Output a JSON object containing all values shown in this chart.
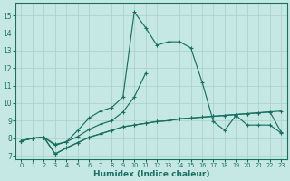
{
  "xlabel": "Humidex (Indice chaleur)",
  "background_color": "#c5e8e5",
  "grid_color": "#a8cfc8",
  "line_color": "#1a7060",
  "xlim": [
    -0.5,
    23.5
  ],
  "ylim": [
    6.8,
    15.7
  ],
  "xticks": [
    0,
    1,
    2,
    3,
    4,
    5,
    6,
    7,
    8,
    9,
    10,
    11,
    12,
    13,
    14,
    15,
    16,
    17,
    18,
    19,
    20,
    21,
    22,
    23
  ],
  "yticks": [
    7,
    8,
    9,
    10,
    11,
    12,
    13,
    14,
    15
  ],
  "x": [
    0,
    1,
    2,
    3,
    4,
    5,
    6,
    7,
    8,
    9,
    10,
    11,
    12,
    13,
    14,
    15,
    16,
    17,
    18,
    19,
    20,
    21,
    22,
    23
  ],
  "line1": [
    7.85,
    8.0,
    8.05,
    7.1,
    7.45,
    7.75,
    8.05,
    8.25,
    8.45,
    8.65,
    8.75,
    8.85,
    8.95,
    9.0,
    9.1,
    9.15,
    9.2,
    9.25,
    9.3,
    9.35,
    9.4,
    9.45,
    9.5,
    9.55
  ],
  "line2": [
    7.85,
    8.0,
    8.05,
    7.65,
    7.8,
    8.1,
    8.5,
    8.8,
    9.0,
    9.5,
    10.35,
    11.7,
    null,
    null,
    null,
    null,
    null,
    null,
    null,
    null,
    null,
    null,
    null,
    null
  ],
  "line3": [
    7.85,
    8.0,
    8.05,
    7.6,
    7.8,
    8.45,
    9.15,
    9.55,
    9.75,
    10.35,
    15.2,
    14.3,
    13.3,
    13.5,
    13.5,
    13.15,
    11.2,
    8.95,
    8.45,
    9.3,
    8.75,
    8.75,
    8.75,
    8.3
  ],
  "line4": [
    7.85,
    8.0,
    8.05,
    7.1,
    7.45,
    7.75,
    8.05,
    8.25,
    8.45,
    8.65,
    8.75,
    8.85,
    8.95,
    9.0,
    9.1,
    9.15,
    9.2,
    9.25,
    9.3,
    9.35,
    9.4,
    9.45,
    9.5,
    8.35
  ]
}
